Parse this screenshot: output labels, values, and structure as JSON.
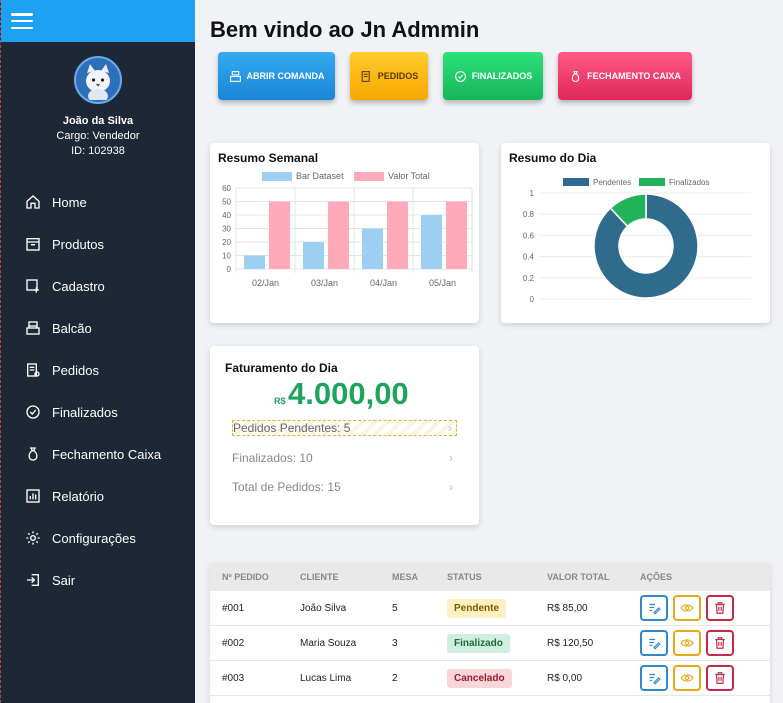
{
  "sidebar": {
    "user": {
      "name": "João da Silva",
      "role": "Cargo: Vendedor",
      "id": "ID: 102938"
    },
    "items": [
      {
        "label": "Home",
        "icon": "home-icon"
      },
      {
        "label": "Produtos",
        "icon": "box-icon"
      },
      {
        "label": "Cadastro",
        "icon": "add-box-icon"
      },
      {
        "label": "Balcão",
        "icon": "counter-icon"
      },
      {
        "label": "Pedidos",
        "icon": "orders-icon"
      },
      {
        "label": "Finalizados",
        "icon": "check-circle-icon"
      },
      {
        "label": "Fechamento Caixa",
        "icon": "money-bag-icon"
      },
      {
        "label": "Relatório",
        "icon": "report-icon"
      },
      {
        "label": "Configurações",
        "icon": "gear-icon"
      },
      {
        "label": "Sair",
        "icon": "logout-icon"
      }
    ]
  },
  "main": {
    "title": "Bem vindo ao Jn Admmin",
    "buttons": {
      "abrir": "ABRIR COMANDA",
      "pedidos": "PEDIDOS",
      "finalizados": "FINALIZADOS",
      "fechamento": "FECHAMENTO CAIXA"
    },
    "weekly": {
      "title": "Resumo Semanal"
    },
    "daily": {
      "title": "Resumo do Dia"
    },
    "faturamento": {
      "title": "Faturamento do Dia",
      "currency": "R$",
      "amount": "4.000,00",
      "rows": [
        "Pedidos Pendentes: 5",
        "Finalizados: 10",
        "Total de Pedidos: 15"
      ]
    },
    "table": {
      "headers": [
        "Nº PEDIDO",
        "CLIENTE",
        "MESA",
        "STATUS",
        "VALOR TOTAL",
        "AÇÕES"
      ],
      "rows": [
        {
          "id": "#001",
          "cliente": "João Silva",
          "mesa": "5",
          "status": "Pendente",
          "valor": "R$ 85,00"
        },
        {
          "id": "#002",
          "cliente": "Maria Souza",
          "mesa": "3",
          "status": "Finalizado",
          "valor": "R$ 120,50"
        },
        {
          "id": "#003",
          "cliente": "Lucas Lima",
          "mesa": "2",
          "status": "Cancelado",
          "valor": "R$ 0,00"
        }
      ]
    }
  },
  "colors": {
    "sidebar": "#1d2735",
    "topbar": "#1da1f2",
    "accent_green": "#1ea45f"
  },
  "chart_data": [
    {
      "type": "bar",
      "title": "Resumo Semanal",
      "categories": [
        "02/Jan",
        "03/Jan",
        "04/Jan",
        "05/Jan"
      ],
      "series": [
        {
          "name": "Bar Dataset",
          "values": [
            10,
            20,
            30,
            40
          ],
          "color": "#9ccff2"
        },
        {
          "name": "Valor Total",
          "values": [
            50,
            50,
            50,
            50
          ],
          "color": "#ffa9bb"
        }
      ],
      "ylim": [
        0,
        60
      ],
      "yticks": [
        0,
        10,
        20,
        30,
        40,
        50,
        60
      ],
      "legend": "top",
      "grid": true
    },
    {
      "type": "pie",
      "title": "Resumo do Dia",
      "categories": [
        "Pendentes",
        "Finalizados"
      ],
      "values": [
        0.88,
        0.12
      ],
      "colors": [
        "#2f6b8c",
        "#22b35a"
      ],
      "yticks": [
        "1",
        "0.8",
        "0.6",
        "0.4",
        "0.2",
        "0"
      ],
      "legend": "top",
      "grid": true
    }
  ]
}
